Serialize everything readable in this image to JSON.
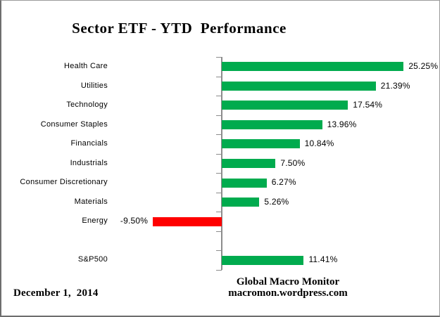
{
  "title": "Sector ETF - YTD  Performance",
  "chart_data": {
    "type": "bar",
    "orientation": "horizontal",
    "title": "Sector ETF - YTD  Performance",
    "xlabel": "",
    "ylabel": "",
    "xlim": [
      -10,
      30
    ],
    "axis_at_zero": true,
    "grid": false,
    "legend": false,
    "slots": 11,
    "rows": [
      {
        "category": "Health Care",
        "value": 25.25,
        "display": "25.25%",
        "slot": 0
      },
      {
        "category": "Utilities",
        "value": 21.39,
        "display": "21.39%",
        "slot": 1
      },
      {
        "category": "Technology",
        "value": 17.54,
        "display": "17.54%",
        "slot": 2
      },
      {
        "category": "Consumer Staples",
        "value": 13.96,
        "display": "13.96%",
        "slot": 3
      },
      {
        "category": "Financials",
        "value": 10.84,
        "display": "10.84%",
        "slot": 4
      },
      {
        "category": "Industrials",
        "value": 7.5,
        "display": "7.50%",
        "slot": 5
      },
      {
        "category": "Consumer Discretionary",
        "value": 6.27,
        "display": "6.27%",
        "slot": 6
      },
      {
        "category": "Materials",
        "value": 5.26,
        "display": "5.26%",
        "slot": 7
      },
      {
        "category": "Energy",
        "value": -9.5,
        "display": "-9.50%",
        "slot": 8
      },
      {
        "category": "S&P500",
        "value": 11.41,
        "display": "11.41%",
        "slot": 10
      }
    ],
    "colors": {
      "positive": "#00AB4E",
      "negative": "#FF0000",
      "axis": "#8C8C8C",
      "text": "#000000"
    }
  },
  "footer": {
    "date": "December 1,  2014",
    "source_line1": "Global Macro Monitor",
    "source_line2": "macromon.wordpress.com"
  }
}
